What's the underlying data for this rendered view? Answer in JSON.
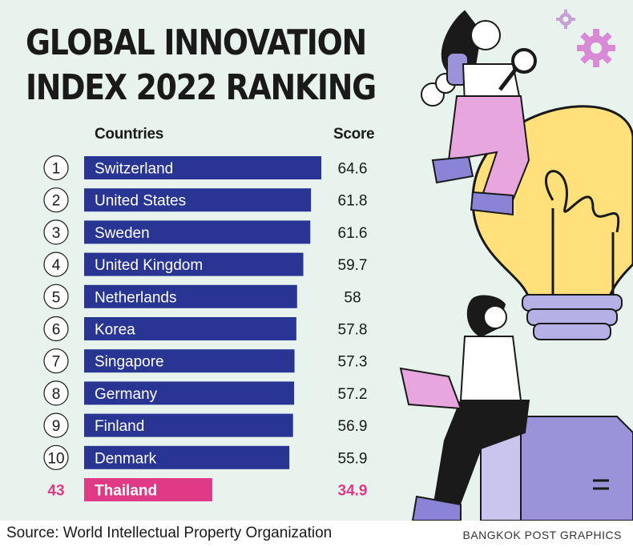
{
  "title_line1": "GLOBAL INNOVATION",
  "title_line2": "INDEX 2022 RANKING",
  "headers": {
    "countries": "Countries",
    "score": "Score"
  },
  "colors": {
    "bar": "#293593",
    "highlight": "#e03a87",
    "text": "#1a1a1a",
    "background": "#e7f3ec"
  },
  "chart_data": {
    "type": "bar",
    "orientation": "horizontal",
    "title": "GLOBAL INNOVATION INDEX 2022 RANKING",
    "xlabel": "Score",
    "ylabel": "Countries",
    "xlim": [
      0,
      64.6
    ],
    "ranks": [
      "1",
      "2",
      "3",
      "4",
      "5",
      "6",
      "7",
      "8",
      "9",
      "10",
      "43"
    ],
    "categories": [
      "Switzerland",
      "United States",
      "Sweden",
      "United Kingdom",
      "Netherlands",
      "Korea",
      "Singapore",
      "Germany",
      "Finland",
      "Denmark",
      "Thailand"
    ],
    "values": [
      64.6,
      61.8,
      61.6,
      59.7,
      58,
      57.8,
      57.3,
      57.2,
      56.9,
      55.9,
      34.9
    ],
    "highlight": "Thailand"
  },
  "source": "Source: World Intellectual Property Organization",
  "credit": "BANGKOK POST GRAPHICS"
}
